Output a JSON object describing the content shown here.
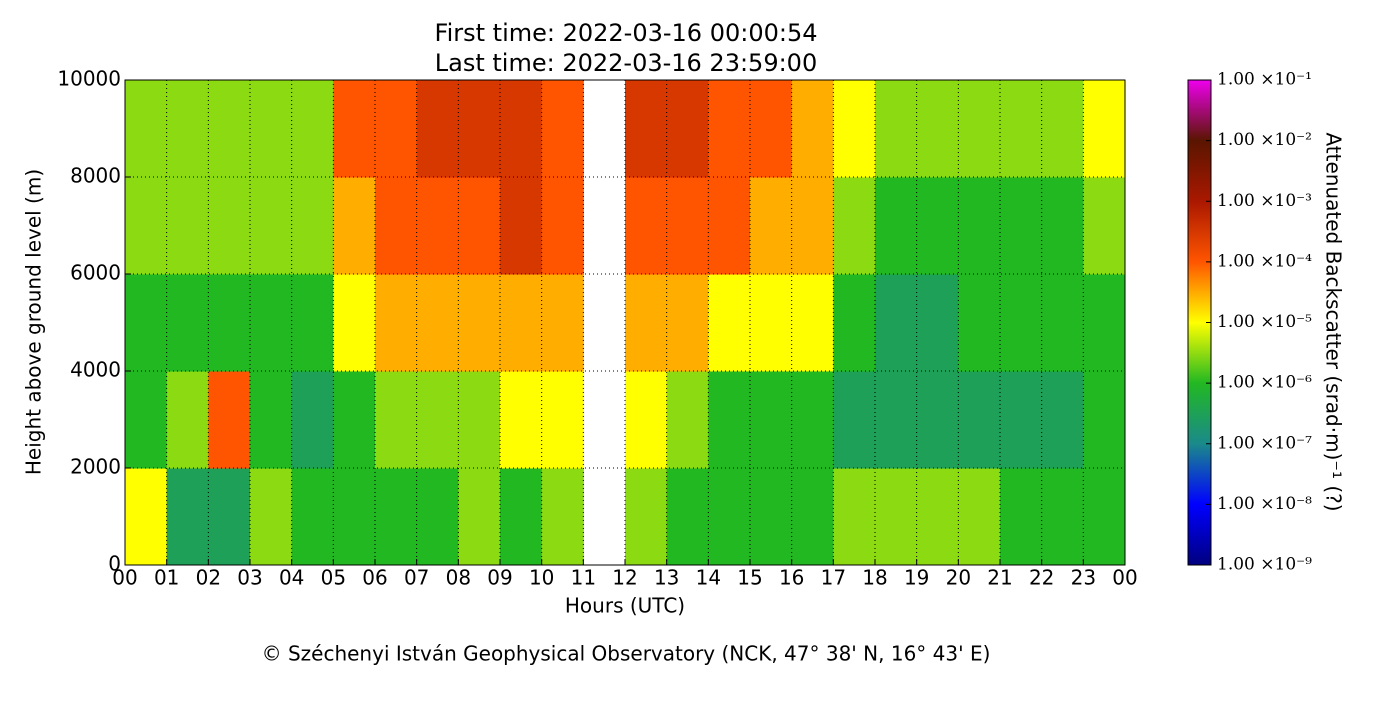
{
  "chart_data": {
    "type": "heatmap",
    "title": "First time: 2022-03-16 00:00:54",
    "subtitle": "Last time: 2022-03-16 23:59:00",
    "x_label": "Hours (UTC)",
    "y_label": "Height above ground level (m)",
    "colorbar_label": "Attenuated Backscatter (srad·m)⁻¹ (?)",
    "footer": "© Széchenyi István Geophysical Observatory (NCK, 47° 38' N, 16° 43' E)",
    "xlim": [
      0,
      24
    ],
    "xticks": [
      {
        "value": 0,
        "label": "00"
      },
      {
        "value": 1,
        "label": "01"
      },
      {
        "value": 2,
        "label": "02"
      },
      {
        "value": 3,
        "label": "03"
      },
      {
        "value": 4,
        "label": "04"
      },
      {
        "value": 5,
        "label": "05"
      },
      {
        "value": 6,
        "label": "06"
      },
      {
        "value": 7,
        "label": "07"
      },
      {
        "value": 8,
        "label": "08"
      },
      {
        "value": 9,
        "label": "09"
      },
      {
        "value": 10,
        "label": "10"
      },
      {
        "value": 11,
        "label": "11"
      },
      {
        "value": 12,
        "label": "12"
      },
      {
        "value": 13,
        "label": "13"
      },
      {
        "value": 14,
        "label": "14"
      },
      {
        "value": 15,
        "label": "15"
      },
      {
        "value": 16,
        "label": "16"
      },
      {
        "value": 17,
        "label": "17"
      },
      {
        "value": 18,
        "label": "18"
      },
      {
        "value": 19,
        "label": "19"
      },
      {
        "value": 20,
        "label": "20"
      },
      {
        "value": 21,
        "label": "21"
      },
      {
        "value": 22,
        "label": "22"
      },
      {
        "value": 23,
        "label": "23"
      },
      {
        "value": 24,
        "label": "00"
      }
    ],
    "ylim": [
      0,
      10000
    ],
    "yticks": [
      0,
      2000,
      4000,
      6000,
      8000,
      10000
    ],
    "grid": true,
    "colorbar_scale": "log",
    "clim": [
      1e-09,
      0.1
    ],
    "colormap": [
      "#00007f",
      "#0000ff",
      "#1a8a8a",
      "#22b822",
      "#ffff00",
      "#ff5500",
      "#aa1800",
      "#5a1500",
      "#ee00ee"
    ],
    "colorbar_ticks": [
      {
        "value": 1e-09,
        "label": "1.00 ×10⁻⁹"
      },
      {
        "value": 1e-08,
        "label": "1.00 ×10⁻⁸"
      },
      {
        "value": 1e-07,
        "label": "1.00 ×10⁻⁷"
      },
      {
        "value": 1e-06,
        "label": "1.00 ×10⁻⁶"
      },
      {
        "value": 1e-05,
        "label": "1.00 ×10⁻⁵"
      },
      {
        "value": 0.0001,
        "label": "1.00 ×10⁻⁴"
      },
      {
        "value": 0.001,
        "label": "1.00 ×10⁻³"
      },
      {
        "value": 0.01,
        "label": "1.00 ×10⁻²"
      },
      {
        "value": 0.1,
        "label": "1.00 ×10⁻¹"
      }
    ],
    "z": [
      [
        1e-05,
        3e-07,
        3e-07,
        3e-06,
        1e-06,
        1e-06,
        1e-06,
        1e-06,
        3e-06,
        1e-06,
        3e-06,
        null,
        3e-06,
        1e-06,
        1e-06,
        1e-06,
        1e-06,
        3e-06,
        3e-06,
        3e-06,
        3e-06,
        1e-06,
        1e-06,
        1e-06
      ],
      [
        1e-06,
        3e-06,
        0.0001,
        1e-06,
        3e-07,
        1e-06,
        3e-06,
        3e-06,
        3e-06,
        1e-05,
        1e-05,
        null,
        1e-05,
        3e-06,
        1e-06,
        1e-06,
        1e-06,
        3e-07,
        3e-07,
        3e-07,
        3e-07,
        3e-07,
        3e-07,
        1e-06
      ],
      [
        1e-06,
        1e-06,
        1e-06,
        1e-06,
        1e-06,
        1e-05,
        3e-05,
        3e-05,
        3e-05,
        3e-05,
        3e-05,
        null,
        3e-05,
        3e-05,
        1e-05,
        1e-05,
        1e-05,
        1e-06,
        3e-07,
        3e-07,
        1e-06,
        1e-06,
        1e-06,
        1e-06
      ],
      [
        3e-06,
        3e-06,
        3e-06,
        3e-06,
        3e-06,
        3e-05,
        0.0001,
        0.0001,
        0.0001,
        0.0003,
        0.0001,
        null,
        0.0001,
        0.0001,
        0.0001,
        3e-05,
        3e-05,
        3e-06,
        1e-06,
        1e-06,
        1e-06,
        1e-06,
        1e-06,
        3e-06
      ],
      [
        3e-06,
        3e-06,
        3e-06,
        3e-06,
        3e-06,
        0.0001,
        0.0001,
        0.0003,
        0.0003,
        0.0003,
        0.0001,
        null,
        0.0003,
        0.0003,
        0.0001,
        0.0001,
        3e-05,
        1e-05,
        3e-06,
        3e-06,
        3e-06,
        3e-06,
        3e-06,
        1e-05
      ]
    ]
  }
}
